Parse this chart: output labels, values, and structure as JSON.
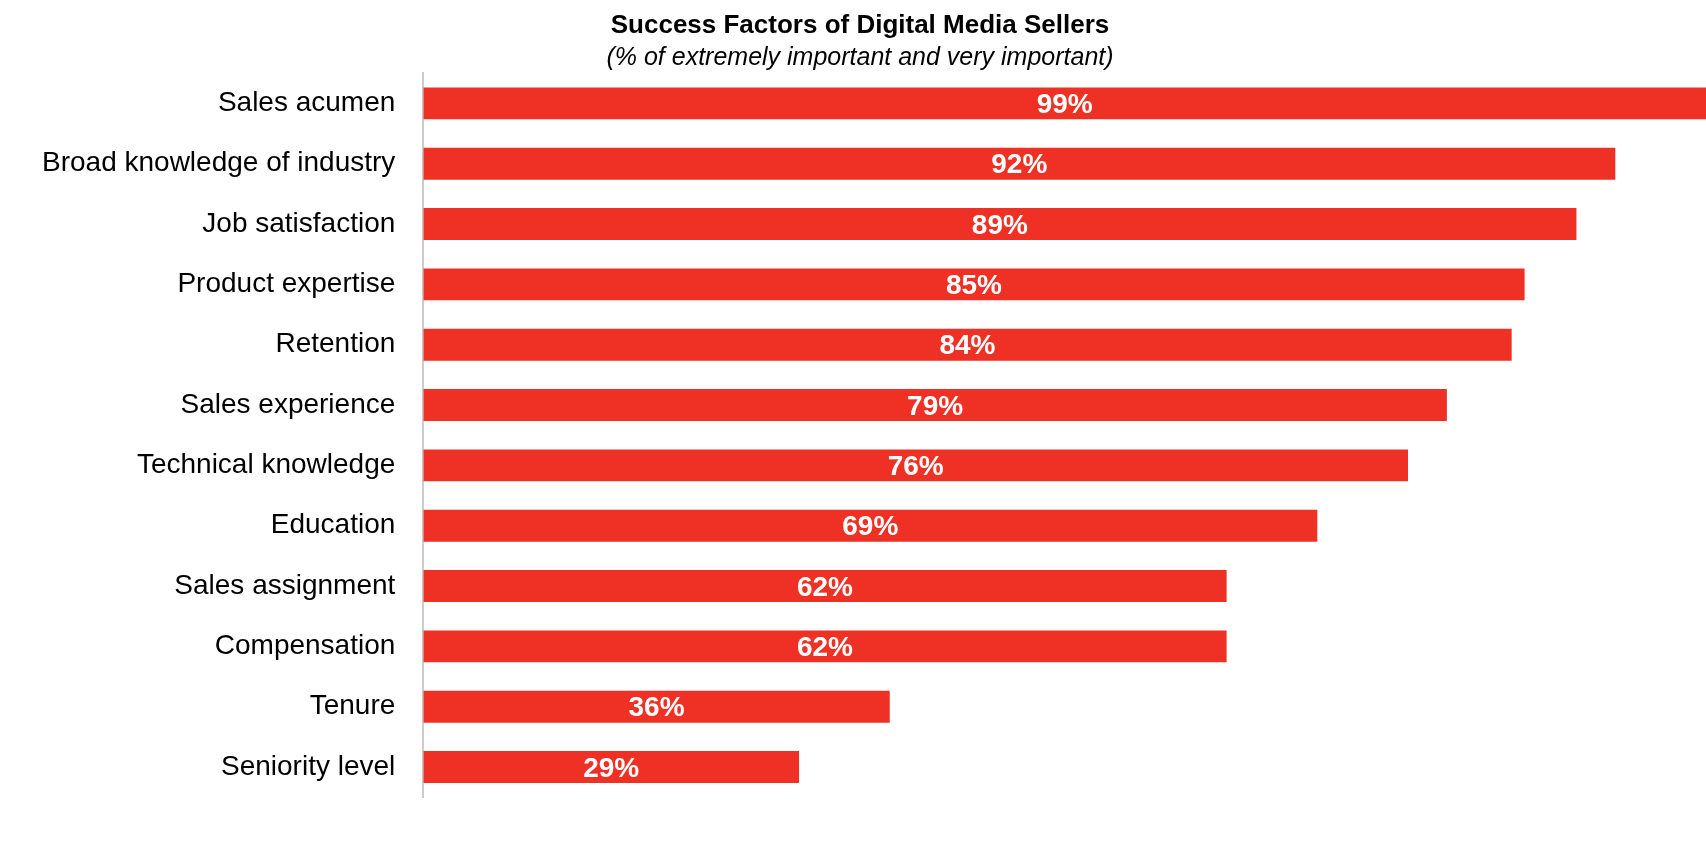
{
  "chart_data": {
    "type": "bar",
    "orientation": "horizontal",
    "title": "Success Factors of Digital Media Sellers",
    "subtitle": "(% of extremely important and very important)",
    "categories": [
      "Sales acumen",
      "Broad knowledge of industry",
      "Job satisfaction",
      "Product expertise",
      "Retention",
      "Sales experience",
      "Technical knowledge",
      "Education",
      "Sales assignment",
      "Compensation",
      "Tenure",
      "Seniority level"
    ],
    "values": [
      99,
      92,
      89,
      85,
      84,
      79,
      76,
      69,
      62,
      62,
      36,
      29
    ],
    "value_labels": [
      "99%",
      "92%",
      "89%",
      "85%",
      "84%",
      "79%",
      "76%",
      "69%",
      "62%",
      "62%",
      "36%",
      "29%"
    ],
    "color": "#ee3124"
  }
}
